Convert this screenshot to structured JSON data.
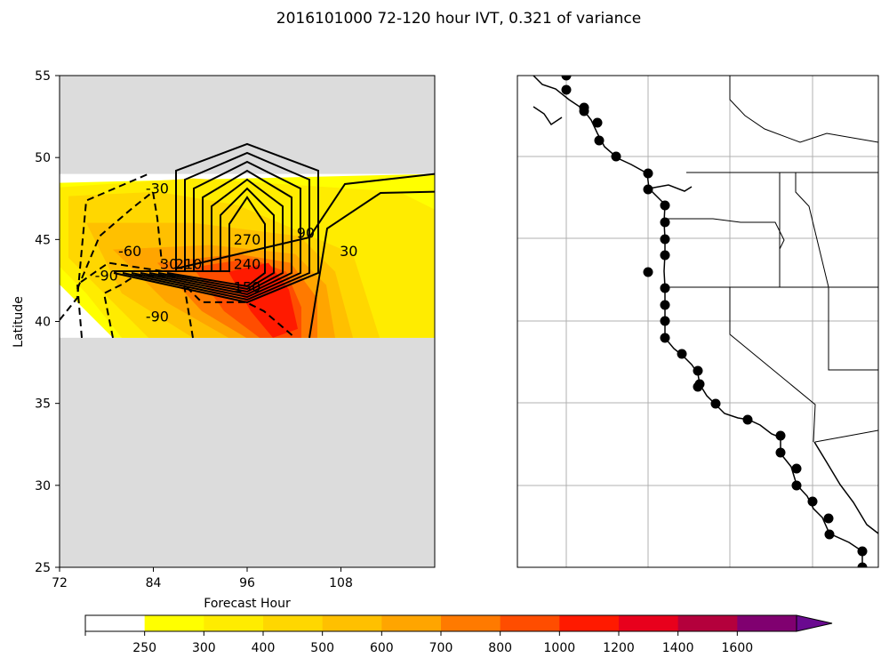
{
  "figure": {
    "title": "2016101000 72-120 hour IVT, 0.321 of variance"
  },
  "chart_data": [
    {
      "type": "heatmap",
      "panel": "left",
      "xlabel": "Forecast Hour",
      "ylabel": "Latitude",
      "xlim": [
        72,
        120
      ],
      "ylim": [
        25,
        55
      ],
      "xticks": [
        72,
        84,
        96,
        108
      ],
      "yticks": [
        25,
        30,
        35,
        40,
        45,
        50,
        55
      ],
      "xtick_labels": [
        "72",
        "84",
        "96",
        "108"
      ],
      "ytick_labels": [
        "25",
        "30",
        "35",
        "40",
        "45",
        "50",
        "55"
      ],
      "data_lat_range": [
        39,
        49
      ],
      "missing_color": "#dcdcdc",
      "grid": false,
      "contour_labels": [
        {
          "text": "-90",
          "x": 78,
          "y": 42.5
        },
        {
          "text": "-90",
          "x": 84.5,
          "y": 40
        },
        {
          "text": "-60",
          "x": 81,
          "y": 44
        },
        {
          "text": "-30",
          "x": 84.5,
          "y": 47.8
        },
        {
          "text": "30",
          "x": 86,
          "y": 43.2
        },
        {
          "text": "210",
          "x": 88.5,
          "y": 43.2
        },
        {
          "text": "270",
          "x": 96,
          "y": 44.7
        },
        {
          "text": "240",
          "x": 96,
          "y": 43.2
        },
        {
          "text": "150",
          "x": 96,
          "y": 41.8
        },
        {
          "text": "90",
          "x": 103.5,
          "y": 45.1
        },
        {
          "text": "30",
          "x": 109,
          "y": 44
        }
      ]
    },
    {
      "type": "map",
      "panel": "right",
      "grid": true,
      "markers": 33
    }
  ],
  "colorbar": {
    "ticks": [
      "250",
      "300",
      "400",
      "500",
      "600",
      "700",
      "800",
      "1000",
      "1200",
      "1400",
      "1600"
    ],
    "colors": [
      "#ffffff",
      "#ffff00",
      "#ffec00",
      "#ffd700",
      "#ffc000",
      "#ffa500",
      "#ff7a00",
      "#ff4d00",
      "#ff1a00",
      "#e8001c",
      "#b4003c",
      "#800070",
      "#6a0a90"
    ],
    "extend": "max"
  }
}
